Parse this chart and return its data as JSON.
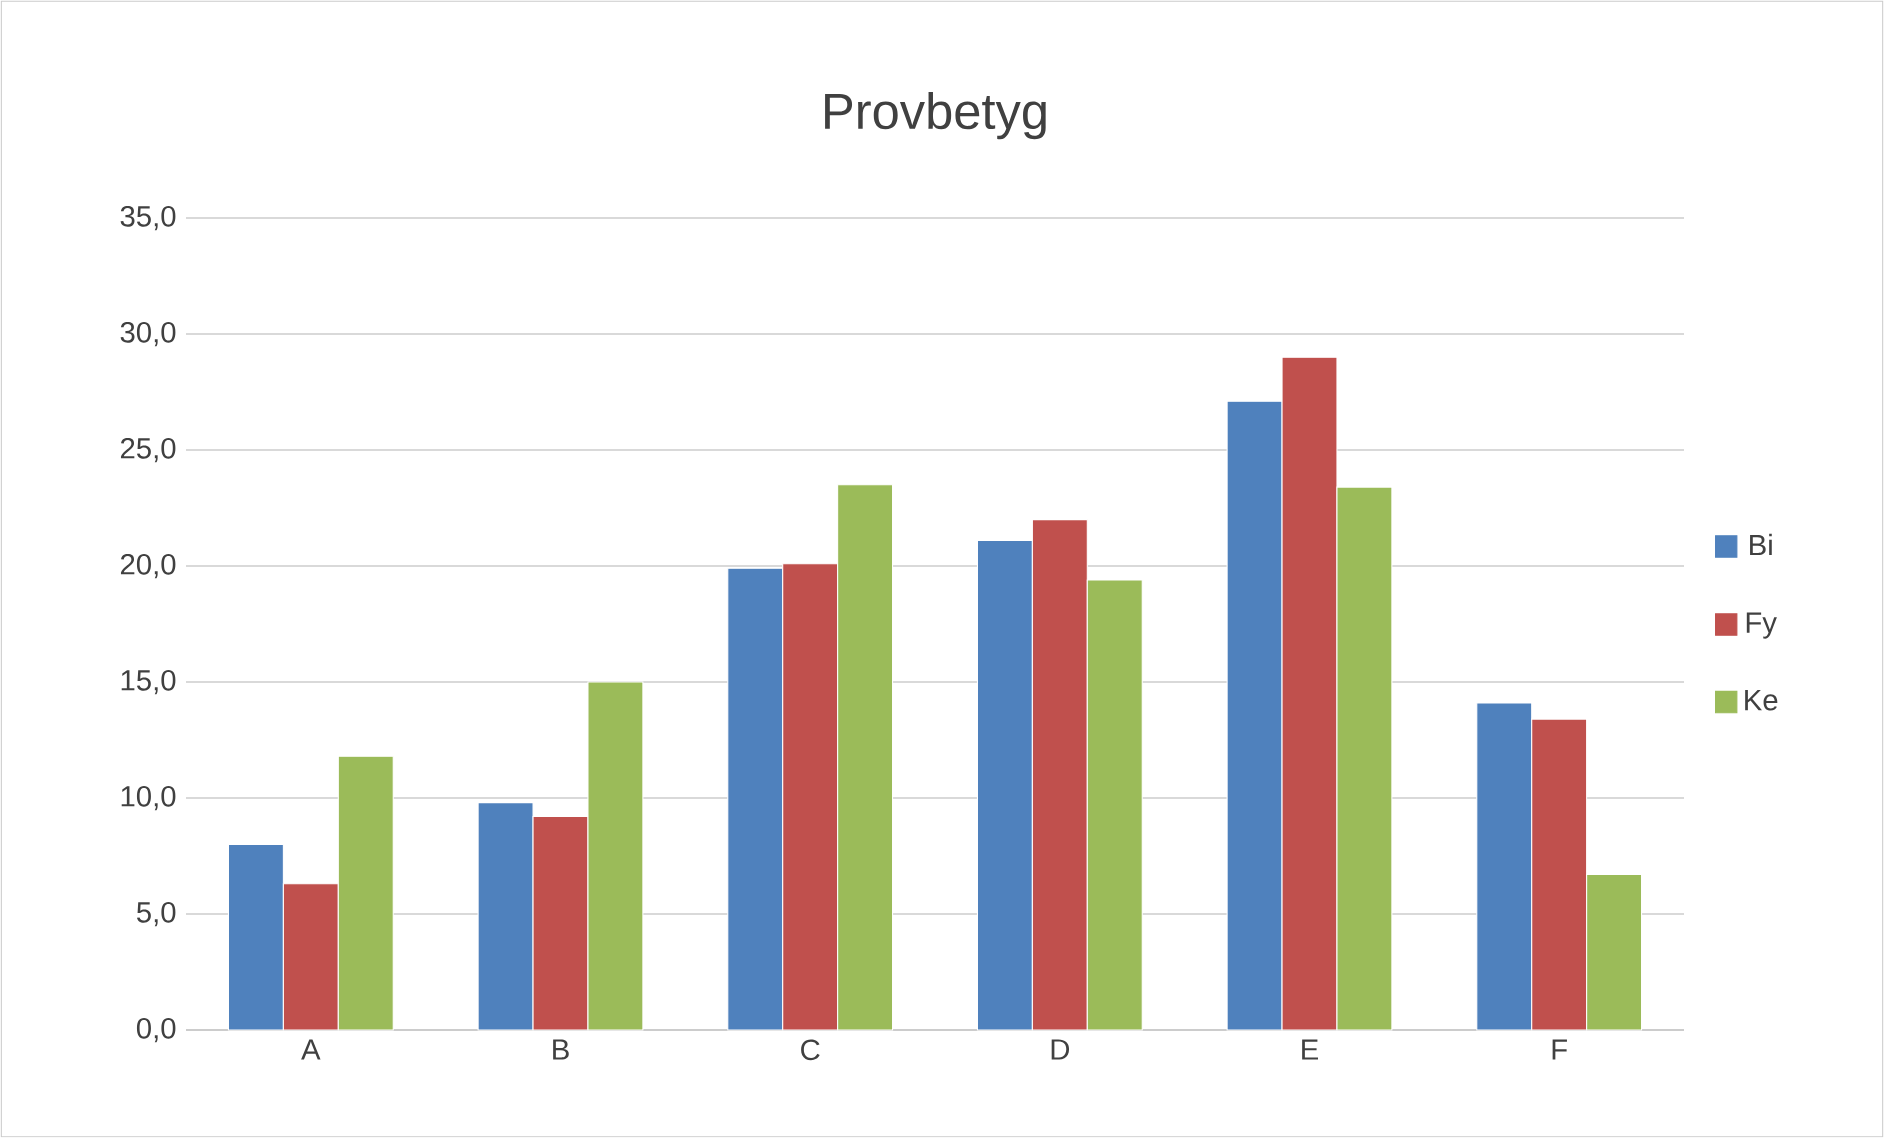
{
  "chart_data": {
    "type": "bar",
    "title": "Provbetyg",
    "categories": [
      "A",
      "B",
      "C",
      "D",
      "E",
      "F"
    ],
    "series": [
      {
        "name": "Bi",
        "color": "#4f81bd",
        "values": [
          8.0,
          9.8,
          19.9,
          21.1,
          27.1,
          14.1
        ]
      },
      {
        "name": "Fy",
        "color": "#c0504d",
        "values": [
          6.3,
          9.2,
          20.1,
          22.0,
          29.0,
          13.4
        ]
      },
      {
        "name": "Ke",
        "color": "#9bbb59",
        "values": [
          11.8,
          15.0,
          23.5,
          19.4,
          23.4,
          6.7
        ]
      }
    ],
    "ylim": [
      0,
      35
    ],
    "yticks": [
      {
        "value": 0,
        "label": "0,0"
      },
      {
        "value": 5,
        "label": "5,0"
      },
      {
        "value": 10,
        "label": "10,0"
      },
      {
        "value": 15,
        "label": "15,0"
      },
      {
        "value": 20,
        "label": "20,0"
      },
      {
        "value": 25,
        "label": "25,0"
      },
      {
        "value": 30,
        "label": "30,0"
      },
      {
        "value": 35,
        "label": "35,0"
      }
    ],
    "grid": "y",
    "legend": "right"
  }
}
